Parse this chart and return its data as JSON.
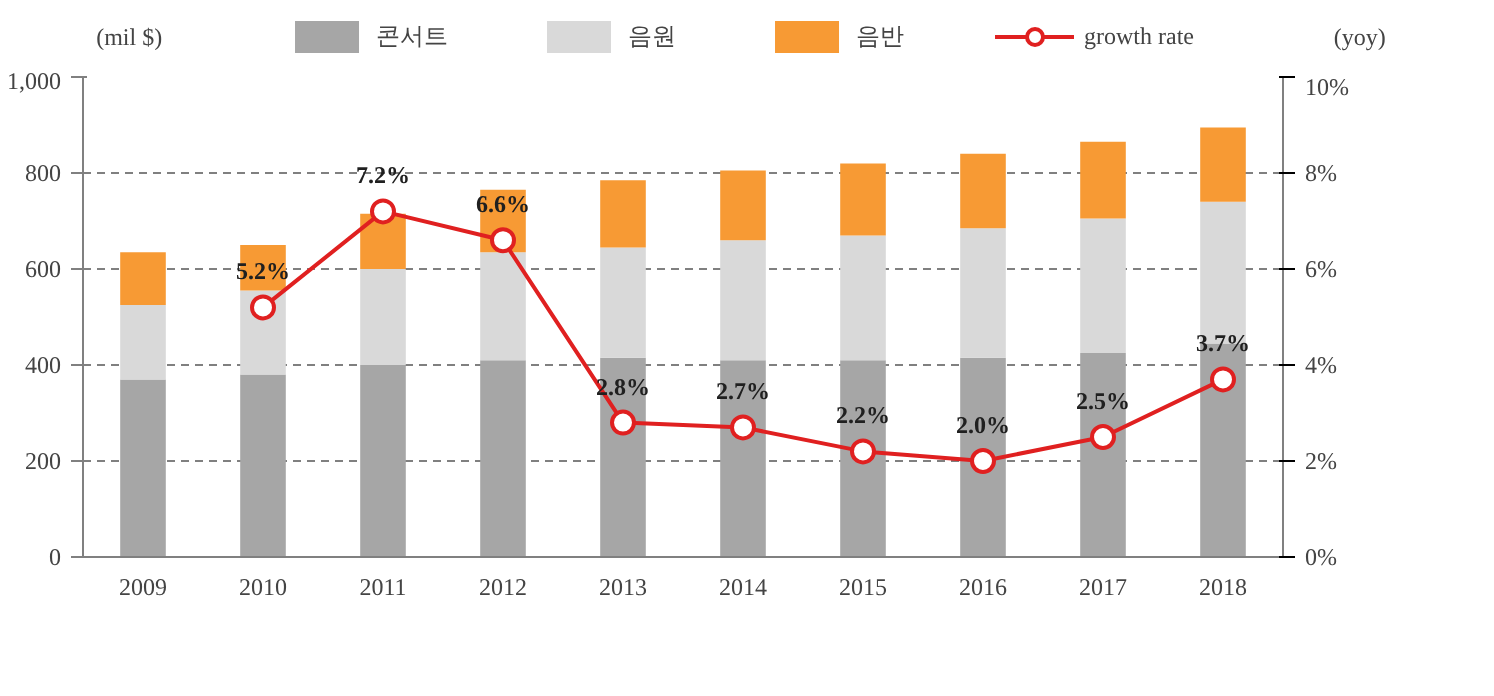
{
  "chart_data": {
    "type": "bar",
    "stacked": true,
    "ylabel": "(mil $)",
    "y2label": "(yoy)",
    "categories": [
      "2009",
      "2010",
      "2011",
      "2012",
      "2013",
      "2014",
      "2015",
      "2016",
      "2017",
      "2018"
    ],
    "series": [
      {
        "name": "콘서트",
        "color": "#a6a6a6",
        "values": [
          370,
          380,
          400,
          410,
          415,
          410,
          410,
          415,
          425,
          445
        ]
      },
      {
        "name": "음원",
        "color": "#d9d9d9",
        "values": [
          155,
          175,
          200,
          225,
          230,
          250,
          260,
          270,
          280,
          295
        ]
      },
      {
        "name": "음반",
        "color": "#f79a34",
        "values": [
          110,
          95,
          115,
          130,
          140,
          145,
          150,
          155,
          160,
          155
        ]
      },
      {
        "name": "growth rate",
        "type": "line",
        "axis": "y2",
        "color": "#e02020",
        "marker": "circle",
        "values": [
          null,
          5.2,
          7.2,
          6.6,
          2.8,
          2.7,
          2.2,
          2.0,
          2.5,
          3.7
        ],
        "value_labels": [
          null,
          "5.2%",
          "7.2%",
          "6.6%",
          "2.8%",
          "2.7%",
          "2.2%",
          "2.0%",
          "2.5%",
          "3.7%"
        ]
      }
    ],
    "ylim": [
      0,
      1000
    ],
    "yticks": [
      0,
      200,
      400,
      600,
      800,
      {
        "value": 1000,
        "label": "1,000"
      }
    ],
    "y2lim": [
      0,
      10
    ],
    "y2ticks": [
      {
        "value": 0,
        "label": "0%"
      },
      {
        "value": 2,
        "label": "2%"
      },
      {
        "value": 4,
        "label": "4%"
      },
      {
        "value": 6,
        "label": "6%"
      },
      {
        "value": 8,
        "label": "8%"
      },
      {
        "value": 10,
        "label": "10%"
      }
    ],
    "grid": "y",
    "legend": "top"
  }
}
